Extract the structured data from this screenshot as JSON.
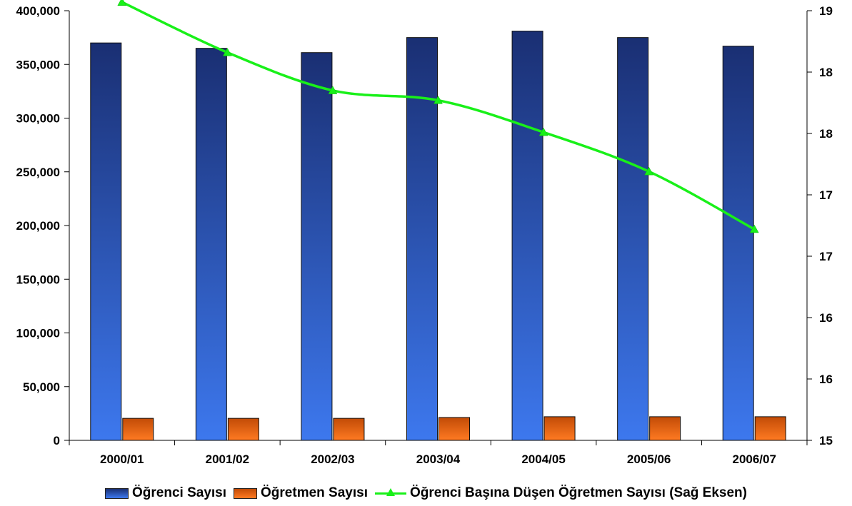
{
  "chart_data": {
    "type": "bar",
    "categories": [
      "2000/01",
      "2001/02",
      "2002/03",
      "2003/04",
      "2004/05",
      "2005/06",
      "2006/07"
    ],
    "series": [
      {
        "name": "Öğrenci Sayısı",
        "type": "bar",
        "axis": "left",
        "color": "#2f5fd4",
        "values": [
          370000,
          365000,
          361000,
          375000,
          381000,
          375000,
          367000
        ]
      },
      {
        "name": "Öğretmen Sayısı",
        "type": "bar",
        "axis": "left",
        "color": "#f06a10",
        "values": [
          20500,
          20500,
          20500,
          21300,
          22000,
          22000,
          22000
        ]
      },
      {
        "name": "Öğrenci Başına Düşen Öğretmen Sayısı (Sağ Eksen)",
        "type": "line",
        "axis": "right",
        "color": "#19f019",
        "marker": "triangle",
        "values": [
          18.57,
          18.16,
          17.85,
          17.77,
          17.51,
          17.19,
          16.72
        ]
      }
    ],
    "left_axis": {
      "ylim": [
        0,
        400000
      ],
      "ticks": [
        0,
        50000,
        100000,
        150000,
        200000,
        250000,
        300000,
        350000,
        400000
      ],
      "tick_labels": [
        "0",
        "50,000",
        "100,000",
        "150,000",
        "200,000",
        "250,000",
        "300,000",
        "350,000",
        "400,000"
      ]
    },
    "right_axis": {
      "ylim": [
        15,
        18.5
      ],
      "ticks": [
        15,
        15.5,
        16,
        16.5,
        17,
        17.5,
        18,
        18.5
      ],
      "tick_labels": [
        "15",
        "16",
        "16",
        "17",
        "17",
        "18",
        "18",
        "19"
      ]
    },
    "grid": false,
    "legend_position": "bottom",
    "title": "",
    "xlabel": "",
    "ylabel": ""
  }
}
